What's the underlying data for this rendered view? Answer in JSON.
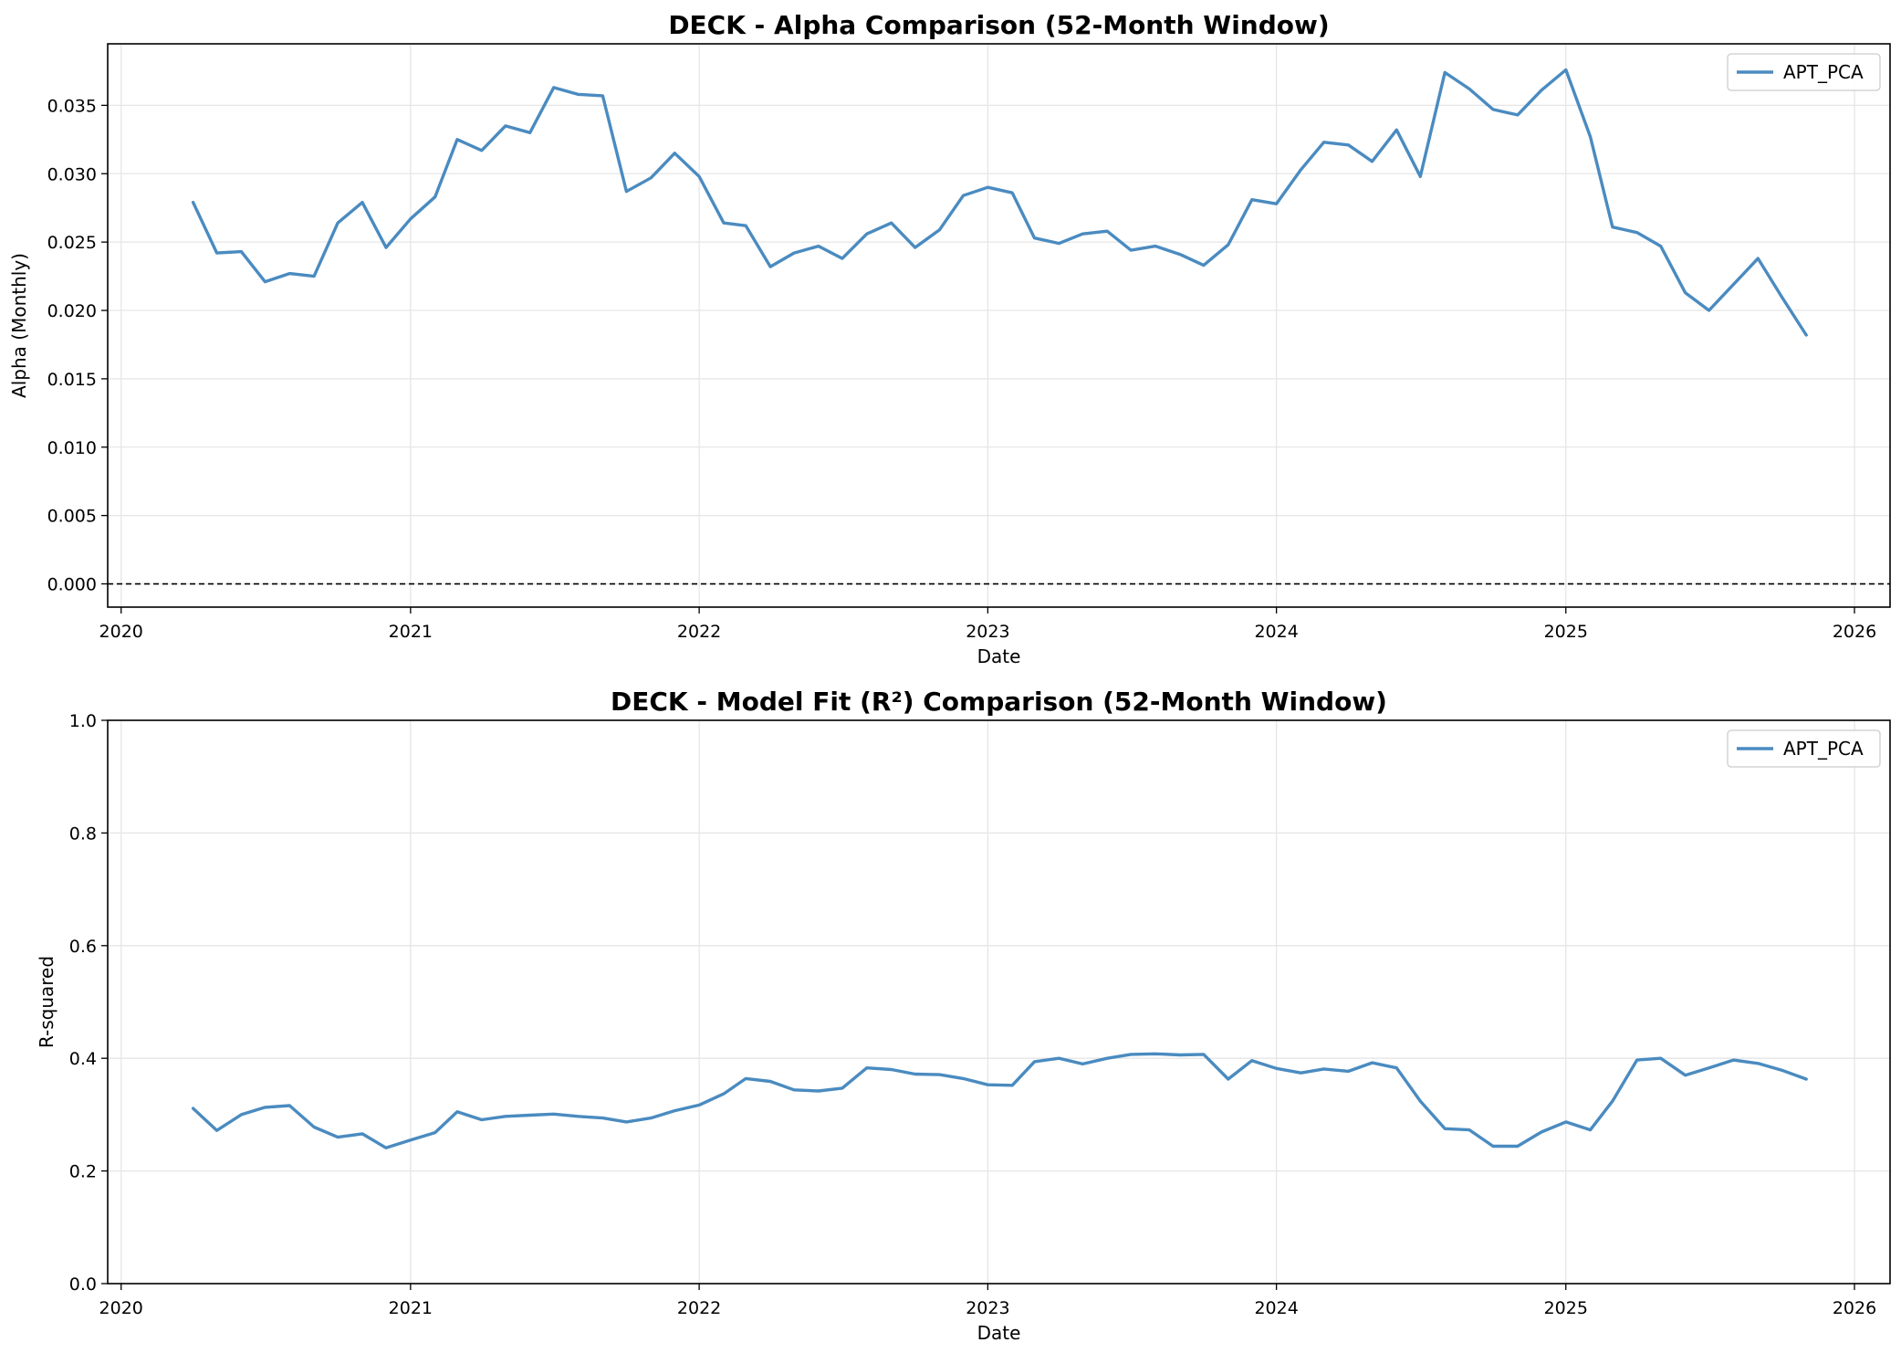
{
  "colors": {
    "series": "#4a8bc0",
    "grid": "#e6e6e6",
    "zero_line": "#000000"
  },
  "chart_data": [
    {
      "type": "line",
      "title": "DECK - Alpha Comparison (52-Month Window)",
      "xlabel": "Date",
      "ylabel": "Alpha (Monthly)",
      "xlim": [
        "2019-12-15",
        "2026-02-15"
      ],
      "ylim": [
        -0.0017,
        0.0395
      ],
      "xticks": [
        "2020",
        "2021",
        "2022",
        "2023",
        "2024",
        "2025",
        "2026"
      ],
      "yticks": [
        "0.000",
        "0.005",
        "0.010",
        "0.015",
        "0.020",
        "0.025",
        "0.030",
        "0.035"
      ],
      "grid": true,
      "legend": "top-right",
      "zero_line": true,
      "x": [
        "2020-04-01",
        "2020-05-01",
        "2020-06-01",
        "2020-07-01",
        "2020-08-01",
        "2020-09-01",
        "2020-10-01",
        "2020-11-01",
        "2020-12-01",
        "2021-01-01",
        "2021-02-01",
        "2021-03-01",
        "2021-04-01",
        "2021-05-01",
        "2021-06-01",
        "2021-07-01",
        "2021-08-01",
        "2021-09-01",
        "2021-10-01",
        "2021-11-01",
        "2021-12-01",
        "2022-01-01",
        "2022-02-01",
        "2022-03-01",
        "2022-04-01",
        "2022-05-01",
        "2022-06-01",
        "2022-07-01",
        "2022-08-01",
        "2022-09-01",
        "2022-10-01",
        "2022-11-01",
        "2022-12-01",
        "2023-01-01",
        "2023-02-01",
        "2023-03-01",
        "2023-04-01",
        "2023-05-01",
        "2023-06-01",
        "2023-07-01",
        "2023-08-01",
        "2023-09-01",
        "2023-10-01",
        "2023-11-01",
        "2023-12-01",
        "2024-01-01",
        "2024-02-01",
        "2024-03-01",
        "2024-04-01",
        "2024-05-01",
        "2024-06-01",
        "2024-07-01",
        "2024-08-01",
        "2024-09-01",
        "2024-10-01",
        "2024-11-01",
        "2024-12-01",
        "2025-01-01",
        "2025-02-01",
        "2025-03-01",
        "2025-04-01",
        "2025-05-01",
        "2025-06-01",
        "2025-07-01",
        "2025-08-01",
        "2025-09-01",
        "2025-10-01",
        "2025-11-01"
      ],
      "series": [
        {
          "name": "APT_PCA",
          "values": [
            0.0279,
            0.0242,
            0.0243,
            0.0221,
            0.0227,
            0.0225,
            0.0264,
            0.0279,
            0.0246,
            0.0267,
            0.0283,
            0.0325,
            0.0317,
            0.0335,
            0.033,
            0.0363,
            0.0358,
            0.0357,
            0.0287,
            0.0297,
            0.0315,
            0.0298,
            0.0264,
            0.0262,
            0.0232,
            0.0242,
            0.0247,
            0.0238,
            0.0256,
            0.0264,
            0.0246,
            0.0259,
            0.0284,
            0.029,
            0.0286,
            0.0253,
            0.0249,
            0.0256,
            0.0258,
            0.0244,
            0.0247,
            0.0241,
            0.0233,
            0.0248,
            0.0281,
            0.0278,
            0.0303,
            0.0323,
            0.0321,
            0.0309,
            0.0332,
            0.0298,
            0.0374,
            0.0362,
            0.0347,
            0.0343,
            0.0361,
            0.0376,
            0.0327,
            0.0261,
            0.0257,
            0.0247,
            0.0213,
            0.02,
            0.0219,
            0.0238,
            0.021,
            0.0182
          ]
        }
      ]
    },
    {
      "type": "line",
      "title": "DECK - Model Fit (R²) Comparison (52-Month Window)",
      "xlabel": "Date",
      "ylabel": "R-squared",
      "xlim": [
        "2019-12-15",
        "2026-02-15"
      ],
      "ylim": [
        0.0,
        1.0
      ],
      "xticks": [
        "2020",
        "2021",
        "2022",
        "2023",
        "2024",
        "2025",
        "2026"
      ],
      "yticks": [
        "0.0",
        "0.2",
        "0.4",
        "0.6",
        "0.8",
        "1.0"
      ],
      "grid": true,
      "legend": "top-right",
      "x": [
        "2020-04-01",
        "2020-05-01",
        "2020-06-01",
        "2020-07-01",
        "2020-08-01",
        "2020-09-01",
        "2020-10-01",
        "2020-11-01",
        "2020-12-01",
        "2021-01-01",
        "2021-02-01",
        "2021-03-01",
        "2021-04-01",
        "2021-05-01",
        "2021-06-01",
        "2021-07-01",
        "2021-08-01",
        "2021-09-01",
        "2021-10-01",
        "2021-11-01",
        "2021-12-01",
        "2022-01-01",
        "2022-02-01",
        "2022-03-01",
        "2022-04-01",
        "2022-05-01",
        "2022-06-01",
        "2022-07-01",
        "2022-08-01",
        "2022-09-01",
        "2022-10-01",
        "2022-11-01",
        "2022-12-01",
        "2023-01-01",
        "2023-02-01",
        "2023-03-01",
        "2023-04-01",
        "2023-05-01",
        "2023-06-01",
        "2023-07-01",
        "2023-08-01",
        "2023-09-01",
        "2023-10-01",
        "2023-11-01",
        "2023-12-01",
        "2024-01-01",
        "2024-02-01",
        "2024-03-01",
        "2024-04-01",
        "2024-05-01",
        "2024-06-01",
        "2024-07-01",
        "2024-08-01",
        "2024-09-01",
        "2024-10-01",
        "2024-11-01",
        "2024-12-01",
        "2025-01-01",
        "2025-02-01",
        "2025-03-01",
        "2025-04-01",
        "2025-05-01",
        "2025-06-01",
        "2025-07-01",
        "2025-08-01",
        "2025-09-01",
        "2025-10-01",
        "2025-11-01"
      ],
      "series": [
        {
          "name": "APT_PCA",
          "values": [
            0.311,
            0.272,
            0.3,
            0.313,
            0.316,
            0.278,
            0.26,
            0.266,
            0.241,
            0.255,
            0.268,
            0.305,
            0.291,
            0.297,
            0.299,
            0.301,
            0.297,
            0.294,
            0.287,
            0.294,
            0.307,
            0.317,
            0.337,
            0.364,
            0.359,
            0.344,
            0.342,
            0.347,
            0.383,
            0.38,
            0.372,
            0.371,
            0.364,
            0.353,
            0.352,
            0.394,
            0.4,
            0.39,
            0.4,
            0.407,
            0.408,
            0.406,
            0.407,
            0.363,
            0.396,
            0.382,
            0.374,
            0.381,
            0.377,
            0.392,
            0.383,
            0.324,
            0.275,
            0.273,
            0.244,
            0.244,
            0.269,
            0.287,
            0.273,
            0.324,
            0.397,
            0.4,
            0.37,
            0.383,
            0.397,
            0.391,
            0.379,
            0.363
          ]
        }
      ]
    }
  ]
}
